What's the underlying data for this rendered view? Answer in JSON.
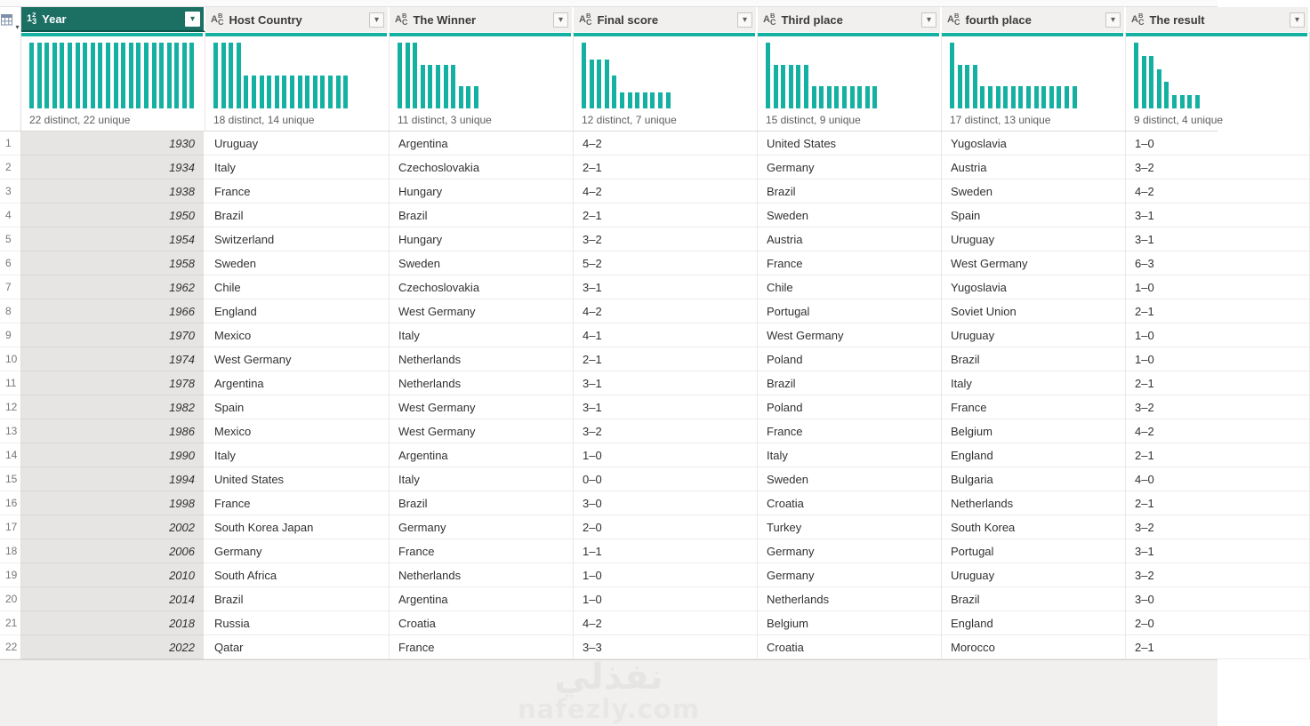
{
  "icons": {
    "table_menu_caret": "▾",
    "filter_dropdown_caret": "▾"
  },
  "watermark": {
    "logo": "نفذلي",
    "site": "nafezly.com"
  },
  "colors": {
    "accent_teal": "#14b1a3",
    "selected_header": "#1b6f63",
    "header_bg": "#f2f0ef",
    "selected_column_bg": "#e6e5e4"
  },
  "columns": [
    {
      "label": "Year",
      "type": "123",
      "selected": true,
      "stats": "22 distinct, 22 unique",
      "bars": [
        1,
        1,
        1,
        1,
        1,
        1,
        1,
        1,
        1,
        1,
        1,
        1,
        1,
        1,
        1,
        1,
        1,
        1,
        1,
        1,
        1,
        1
      ]
    },
    {
      "label": "Host Country",
      "type": "ABC",
      "selected": false,
      "stats": "18 distinct, 14 unique",
      "bars": [
        2,
        2,
        2,
        2,
        1,
        1,
        1,
        1,
        1,
        1,
        1,
        1,
        1,
        1,
        1,
        1,
        1,
        1
      ]
    },
    {
      "label": "The Winner",
      "type": "ABC",
      "selected": false,
      "stats": "11 distinct, 3 unique",
      "bars": [
        3,
        3,
        3,
        2,
        2,
        2,
        2,
        2,
        1,
        1,
        1
      ]
    },
    {
      "label": "Final score",
      "type": "ABC",
      "selected": false,
      "stats": "12 distinct, 7 unique",
      "bars": [
        4,
        3,
        3,
        3,
        2,
        1,
        1,
        1,
        1,
        1,
        1,
        1
      ]
    },
    {
      "label": "Third place",
      "type": "ABC",
      "selected": false,
      "stats": "15 distinct, 9 unique",
      "bars": [
        3,
        2,
        2,
        2,
        2,
        2,
        1,
        1,
        1,
        1,
        1,
        1,
        1,
        1,
        1
      ]
    },
    {
      "label": "fourth place",
      "type": "ABC",
      "selected": false,
      "stats": "17 distinct, 13 unique",
      "bars": [
        3,
        2,
        2,
        2,
        1,
        1,
        1,
        1,
        1,
        1,
        1,
        1,
        1,
        1,
        1,
        1,
        1
      ]
    },
    {
      "label": "The result",
      "type": "ABC",
      "selected": false,
      "stats": "9 distinct, 4 unique",
      "bars": [
        5,
        4,
        4,
        3,
        2,
        1,
        1,
        1,
        1
      ]
    }
  ],
  "rows": [
    [
      "1930",
      "Uruguay",
      "Argentina",
      "4–2",
      "United States",
      "Yugoslavia",
      "1–0"
    ],
    [
      "1934",
      "Italy",
      "Czechoslovakia",
      "2–1",
      "Germany",
      "Austria",
      "3–2"
    ],
    [
      "1938",
      "France",
      "Hungary",
      "4–2",
      "Brazil",
      "Sweden",
      "4–2"
    ],
    [
      "1950",
      "Brazil",
      "Brazil",
      "2–1",
      "Sweden",
      "Spain",
      "3–1"
    ],
    [
      "1954",
      "Switzerland",
      "Hungary",
      "3–2",
      "Austria",
      "Uruguay",
      "3–1"
    ],
    [
      "1958",
      "Sweden",
      "Sweden",
      "5–2",
      "France",
      "West Germany",
      "6–3"
    ],
    [
      "1962",
      "Chile",
      "Czechoslovakia",
      "3–1",
      "Chile",
      "Yugoslavia",
      "1–0"
    ],
    [
      "1966",
      "England",
      "West Germany",
      "4–2",
      "Portugal",
      "Soviet Union",
      "2–1"
    ],
    [
      "1970",
      "Mexico",
      "Italy",
      "4–1",
      "West Germany",
      "Uruguay",
      "1–0"
    ],
    [
      "1974",
      "West Germany",
      "Netherlands",
      "2–1",
      "Poland",
      "Brazil",
      "1–0"
    ],
    [
      "1978",
      "Argentina",
      "Netherlands",
      "3–1",
      "Brazil",
      "Italy",
      "2–1"
    ],
    [
      "1982",
      "Spain",
      "West Germany",
      "3–1",
      "Poland",
      "France",
      "3–2"
    ],
    [
      "1986",
      "Mexico",
      "West Germany",
      "3–2",
      "France",
      "Belgium",
      "4–2"
    ],
    [
      "1990",
      "Italy",
      "Argentina",
      "1–0",
      "Italy",
      "England",
      "2–1"
    ],
    [
      "1994",
      "United States",
      "Italy",
      "0–0",
      "Sweden",
      "Bulgaria",
      "4–0"
    ],
    [
      "1998",
      "France",
      "Brazil",
      "3–0",
      "Croatia",
      "Netherlands",
      "2–1"
    ],
    [
      "2002",
      "South Korea Japan",
      "Germany",
      "2–0",
      "Turkey",
      "South Korea",
      "3–2"
    ],
    [
      "2006",
      "Germany",
      "France",
      "1–1",
      "Germany",
      "Portugal",
      "3–1"
    ],
    [
      "2010",
      "South Africa",
      "Netherlands",
      "1–0",
      "Germany",
      "Uruguay",
      "3–2"
    ],
    [
      "2014",
      "Brazil",
      "Argentina",
      "1–0",
      "Netherlands",
      "Brazil",
      "3–0"
    ],
    [
      "2018",
      "Russia",
      "Croatia",
      "4–2",
      "Belgium",
      "England",
      "2–0"
    ],
    [
      "2022",
      "Qatar",
      "France",
      "3–3",
      "Croatia",
      "Morocco",
      "2–1"
    ]
  ]
}
